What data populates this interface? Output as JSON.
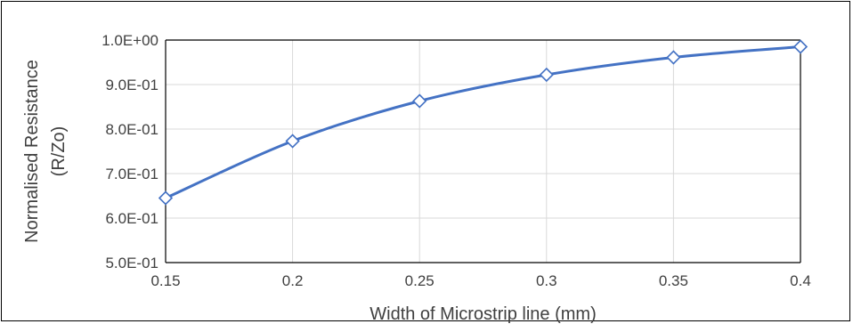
{
  "chart_data": {
    "type": "line",
    "title": "",
    "xlabel": "Width of Microstrip line (mm)",
    "ylabel_lines": [
      "Normalised Resistance",
      "(R/Zo)"
    ],
    "x": [
      0.15,
      0.2,
      0.25,
      0.3,
      0.35,
      0.4
    ],
    "x_tick_labels": [
      "0.15",
      "0.2",
      "0.25",
      "0.3",
      "0.35",
      "0.4"
    ],
    "xlim": [
      0.15,
      0.4
    ],
    "ylim": [
      0.5,
      1.0
    ],
    "y_ticks": [
      0.5,
      0.6,
      0.7,
      0.8,
      0.9,
      1.0
    ],
    "y_tick_labels": [
      "5.0E-01",
      "6.0E-01",
      "7.0E-01",
      "8.0E-01",
      "9.0E-01",
      "1.0E+00"
    ],
    "grid": true,
    "legend": "none",
    "series": [
      {
        "values": [
          0.645,
          0.773,
          0.863,
          0.922,
          0.961,
          0.985
        ],
        "color": "#4472C4",
        "marker": "diamond-open",
        "smooth": true
      }
    ]
  }
}
